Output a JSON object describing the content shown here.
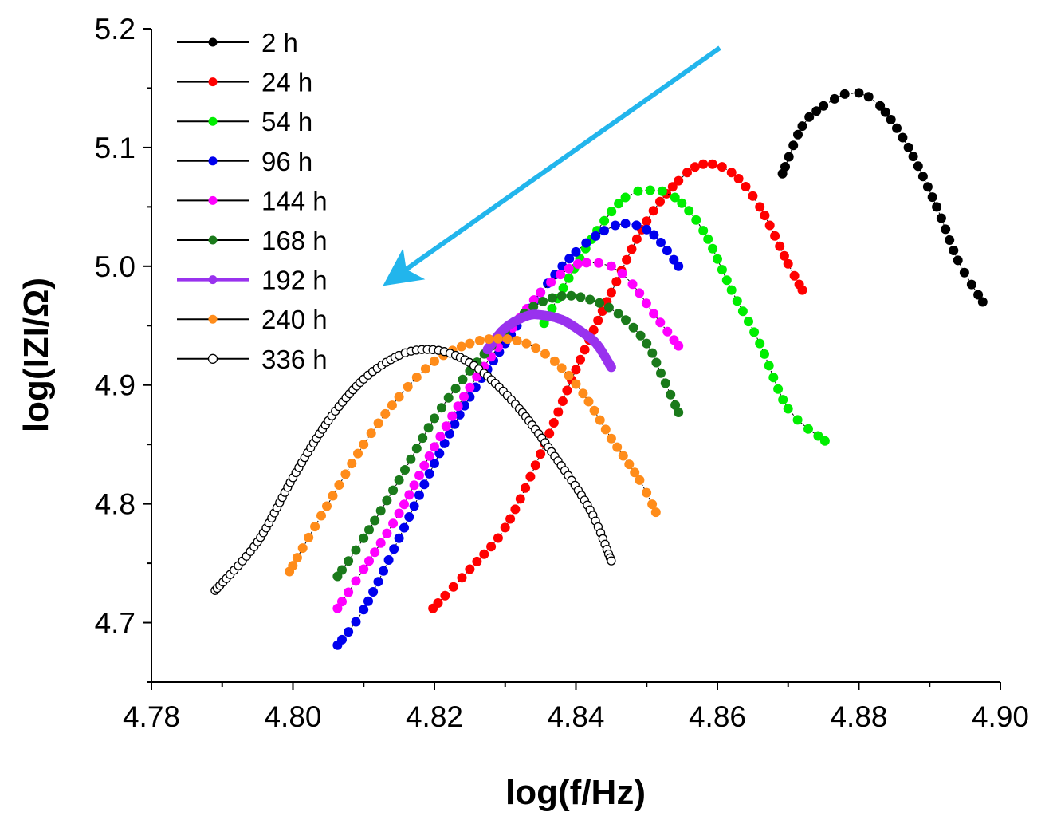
{
  "chart_data": {
    "type": "scatter",
    "title": "",
    "xlabel": "log(f/Hz)",
    "ylabel": "log(IZI/Ω)",
    "xlim": [
      4.78,
      4.9
    ],
    "ylim": [
      4.65,
      5.2
    ],
    "x_ticks": [
      "4.78",
      "4.80",
      "4.82",
      "4.84",
      "4.86",
      "4.88",
      "4.90"
    ],
    "y_ticks": [
      "4.7",
      "4.8",
      "4.9",
      "5.0",
      "5.1",
      "5.2"
    ],
    "grid": false,
    "legend_position": "top-left",
    "annotation": "arrow from upper-right to lower-left indicating shift with immersion time",
    "arrow_color": "#22b5ec",
    "series": [
      {
        "name": "2 h",
        "color": "#000000",
        "fill": true,
        "xy": [
          [
            4.8692,
            5.078
          ],
          [
            4.872,
            5.118
          ],
          [
            4.875,
            5.135
          ],
          [
            4.878,
            5.145
          ],
          [
            4.88,
            5.146
          ],
          [
            4.883,
            5.135
          ],
          [
            4.887,
            5.1
          ],
          [
            4.891,
            5.05
          ],
          [
            4.894,
            5.005
          ],
          [
            4.8975,
            4.97
          ]
        ]
      },
      {
        "name": "24 h",
        "color": "#ff0000",
        "fill": true,
        "xy": [
          [
            4.8198,
            4.712
          ],
          [
            4.825,
            4.745
          ],
          [
            4.83,
            4.78
          ],
          [
            4.835,
            4.842
          ],
          [
            4.84,
            4.913
          ],
          [
            4.845,
            4.978
          ],
          [
            4.85,
            5.038
          ],
          [
            4.8545,
            5.072
          ],
          [
            4.858,
            5.086
          ],
          [
            4.862,
            5.079
          ],
          [
            4.866,
            5.05
          ],
          [
            4.87,
            5.002
          ],
          [
            4.872,
            4.98
          ]
        ]
      },
      {
        "name": "54 h",
        "color": "#00ee00",
        "fill": true,
        "xy": [
          [
            4.8355,
            4.952
          ],
          [
            4.839,
            4.99
          ],
          [
            4.843,
            5.03
          ],
          [
            4.847,
            5.058
          ],
          [
            4.8505,
            5.064
          ],
          [
            4.854,
            5.058
          ],
          [
            4.858,
            5.03
          ],
          [
            4.862,
            4.98
          ],
          [
            4.866,
            4.935
          ],
          [
            4.87,
            4.88
          ],
          [
            4.8752,
            4.853
          ]
        ]
      },
      {
        "name": "96 h",
        "color": "#0000ee",
        "fill": true,
        "xy": [
          [
            4.8063,
            4.681
          ],
          [
            4.81,
            4.711
          ],
          [
            4.815,
            4.771
          ],
          [
            4.82,
            4.834
          ],
          [
            4.825,
            4.89
          ],
          [
            4.83,
            4.935
          ],
          [
            4.835,
            4.978
          ],
          [
            4.84,
            5.012
          ],
          [
            4.844,
            5.03
          ],
          [
            4.847,
            5.036
          ],
          [
            4.85,
            5.031
          ],
          [
            4.852,
            5.02
          ],
          [
            4.8545,
            5.0
          ]
        ]
      },
      {
        "name": "144 h",
        "color": "#ff00ff",
        "fill": true,
        "xy": [
          [
            4.8063,
            4.712
          ],
          [
            4.81,
            4.745
          ],
          [
            4.815,
            4.792
          ],
          [
            4.82,
            4.848
          ],
          [
            4.825,
            4.898
          ],
          [
            4.83,
            4.94
          ],
          [
            4.835,
            4.978
          ],
          [
            4.839,
            4.998
          ],
          [
            4.8415,
            5.003
          ],
          [
            4.845,
            5.0
          ],
          [
            4.848,
            4.985
          ],
          [
            4.851,
            4.96
          ],
          [
            4.8545,
            4.933
          ]
        ]
      },
      {
        "name": "168 h",
        "color": "#1a7a1a",
        "fill": true,
        "xy": [
          [
            4.8063,
            4.739
          ],
          [
            4.81,
            4.771
          ],
          [
            4.815,
            4.82
          ],
          [
            4.82,
            4.872
          ],
          [
            4.825,
            4.912
          ],
          [
            4.83,
            4.945
          ],
          [
            4.834,
            4.966
          ],
          [
            4.838,
            4.975
          ],
          [
            4.842,
            4.972
          ],
          [
            4.846,
            4.96
          ],
          [
            4.85,
            4.935
          ],
          [
            4.852,
            4.91
          ],
          [
            4.8545,
            4.877
          ]
        ]
      },
      {
        "name": "192 h",
        "color": "#9932ee",
        "fill": true,
        "dense": true,
        "xy": [
          [
            4.8275,
            4.93
          ],
          [
            4.83,
            4.948
          ],
          [
            4.833,
            4.958
          ],
          [
            4.835,
            4.959
          ],
          [
            4.838,
            4.955
          ],
          [
            4.841,
            4.944
          ],
          [
            4.843,
            4.934
          ],
          [
            4.845,
            4.915
          ]
        ]
      },
      {
        "name": "240 h",
        "color": "#ff8c1a",
        "fill": true,
        "xy": [
          [
            4.7995,
            4.743
          ],
          [
            4.804,
            4.79
          ],
          [
            4.81,
            4.85
          ],
          [
            4.815,
            4.89
          ],
          [
            4.82,
            4.92
          ],
          [
            4.825,
            4.935
          ],
          [
            4.829,
            4.939
          ],
          [
            4.833,
            4.935
          ],
          [
            4.837,
            4.92
          ],
          [
            4.841,
            4.893
          ],
          [
            4.845,
            4.855
          ],
          [
            4.849,
            4.82
          ],
          [
            4.8513,
            4.793
          ]
        ]
      },
      {
        "name": "336 h",
        "color": "#000000",
        "fill": false,
        "xy": [
          [
            4.789,
            4.727
          ],
          [
            4.795,
            4.768
          ],
          [
            4.8,
            4.822
          ],
          [
            4.805,
            4.87
          ],
          [
            4.81,
            4.905
          ],
          [
            4.815,
            4.925
          ],
          [
            4.819,
            4.93
          ],
          [
            4.823,
            4.925
          ],
          [
            4.827,
            4.91
          ],
          [
            4.832,
            4.88
          ],
          [
            4.837,
            4.84
          ],
          [
            4.842,
            4.795
          ],
          [
            4.845,
            4.752
          ]
        ]
      }
    ]
  }
}
